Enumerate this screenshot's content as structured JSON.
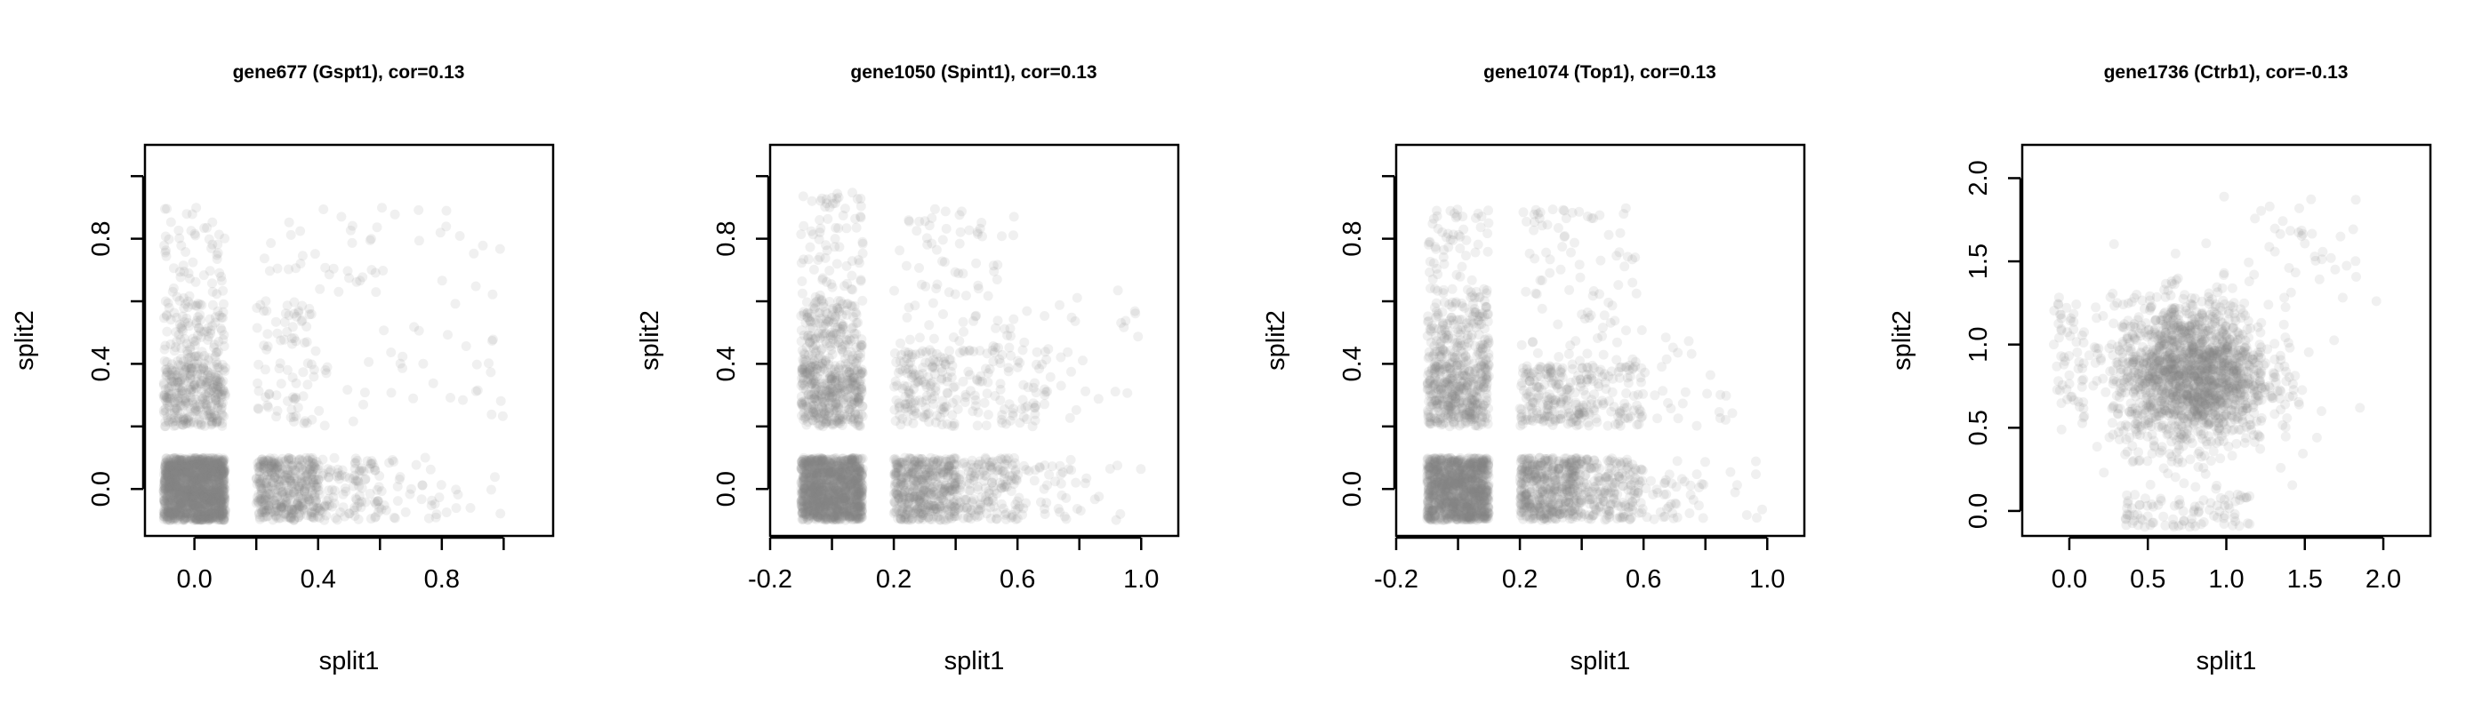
{
  "chart_data": [
    {
      "type": "scatter",
      "title": "gene677 (Gspt1), cor=0.13",
      "xlabel": "split1",
      "ylabel": "split2",
      "xlim": [
        -0.16,
        1.16
      ],
      "ylim": [
        -0.15,
        1.1
      ],
      "xticks": [
        0.0,
        0.2,
        0.4,
        0.6,
        0.8,
        1.0
      ],
      "xtick_labels": [
        "0.0",
        "",
        "0.4",
        "",
        "0.8",
        ""
      ],
      "yticks": [
        0.0,
        0.2,
        0.4,
        0.6,
        0.8,
        1.0
      ],
      "ytick_labels": [
        "0.0",
        "",
        "0.4",
        "",
        "0.8",
        ""
      ],
      "point_color": "#808080",
      "correlation": 0.13,
      "clusters": [
        {
          "x": [
            -0.1,
            0.1
          ],
          "y": [
            -0.1,
            0.1
          ],
          "n": 1500
        },
        {
          "x": [
            0.2,
            0.4
          ],
          "y": [
            -0.1,
            0.1
          ],
          "n": 420
        },
        {
          "x": [
            0.4,
            0.6
          ],
          "y": [
            -0.1,
            0.1
          ],
          "n": 110
        },
        {
          "x": [
            0.6,
            0.8
          ],
          "y": [
            -0.1,
            0.1
          ],
          "n": 30
        },
        {
          "x": [
            0.8,
            1.0
          ],
          "y": [
            -0.1,
            0.1
          ],
          "n": 8
        },
        {
          "x": [
            -0.1,
            0.1
          ],
          "y": [
            0.2,
            0.4
          ],
          "n": 320
        },
        {
          "x": [
            -0.1,
            0.1
          ],
          "y": [
            0.4,
            0.6
          ],
          "n": 110
        },
        {
          "x": [
            -0.1,
            0.1
          ],
          "y": [
            0.6,
            0.9
          ],
          "n": 55
        },
        {
          "x": [
            0.2,
            0.4
          ],
          "y": [
            0.2,
            0.6
          ],
          "n": 80
        },
        {
          "x": [
            0.4,
            1.0
          ],
          "y": [
            0.2,
            0.9
          ],
          "n": 60
        },
        {
          "x": [
            0.2,
            0.6
          ],
          "y": [
            0.6,
            0.9
          ],
          "n": 25
        }
      ]
    },
    {
      "type": "scatter",
      "title": "gene1050 (Spint1), cor=0.13",
      "xlabel": "split1",
      "ylabel": "split2",
      "xlim": [
        -0.2,
        1.12
      ],
      "ylim": [
        -0.15,
        1.1
      ],
      "xticks": [
        -0.2,
        0.0,
        0.2,
        0.4,
        0.6,
        0.8,
        1.0
      ],
      "xtick_labels": [
        "-0.2",
        "",
        "0.2",
        "",
        "0.6",
        "",
        "1.0"
      ],
      "yticks": [
        0.0,
        0.2,
        0.4,
        0.6,
        0.8,
        1.0
      ],
      "ytick_labels": [
        "0.0",
        "",
        "0.4",
        "",
        "0.8",
        ""
      ],
      "point_color": "#808080",
      "correlation": 0.13,
      "clusters": [
        {
          "x": [
            -0.1,
            0.1
          ],
          "y": [
            -0.1,
            0.1
          ],
          "n": 1200
        },
        {
          "x": [
            0.2,
            0.4
          ],
          "y": [
            -0.1,
            0.1
          ],
          "n": 450
        },
        {
          "x": [
            0.4,
            0.6
          ],
          "y": [
            -0.1,
            0.1
          ],
          "n": 160
        },
        {
          "x": [
            0.6,
            0.8
          ],
          "y": [
            -0.1,
            0.1
          ],
          "n": 40
        },
        {
          "x": [
            0.8,
            1.0
          ],
          "y": [
            -0.1,
            0.1
          ],
          "n": 10
        },
        {
          "x": [
            -0.1,
            0.1
          ],
          "y": [
            0.2,
            0.4
          ],
          "n": 380
        },
        {
          "x": [
            -0.1,
            0.1
          ],
          "y": [
            0.4,
            0.6
          ],
          "n": 180
        },
        {
          "x": [
            -0.1,
            0.1
          ],
          "y": [
            0.6,
            0.95
          ],
          "n": 80
        },
        {
          "x": [
            0.2,
            0.4
          ],
          "y": [
            0.2,
            0.45
          ],
          "n": 150
        },
        {
          "x": [
            0.4,
            0.7
          ],
          "y": [
            0.2,
            0.45
          ],
          "n": 90
        },
        {
          "x": [
            0.2,
            0.6
          ],
          "y": [
            0.45,
            0.9
          ],
          "n": 80
        },
        {
          "x": [
            0.6,
            1.0
          ],
          "y": [
            0.2,
            0.7
          ],
          "n": 30
        }
      ]
    },
    {
      "type": "scatter",
      "title": "gene1074 (Top1), cor=0.13",
      "xlabel": "split1",
      "ylabel": "split2",
      "xlim": [
        -0.2,
        1.12
      ],
      "ylim": [
        -0.15,
        1.1
      ],
      "xticks": [
        -0.2,
        0.0,
        0.2,
        0.4,
        0.6,
        0.8,
        1.0
      ],
      "xtick_labels": [
        "-0.2",
        "",
        "0.2",
        "",
        "0.6",
        "",
        "1.0"
      ],
      "yticks": [
        0.0,
        0.2,
        0.4,
        0.6,
        0.8,
        1.0
      ],
      "ytick_labels": [
        "0.0",
        "",
        "0.4",
        "",
        "0.8",
        ""
      ],
      "point_color": "#808080",
      "correlation": 0.13,
      "clusters": [
        {
          "x": [
            -0.1,
            0.1
          ],
          "y": [
            -0.1,
            0.1
          ],
          "n": 1100
        },
        {
          "x": [
            0.2,
            0.4
          ],
          "y": [
            -0.1,
            0.1
          ],
          "n": 480
        },
        {
          "x": [
            0.4,
            0.6
          ],
          "y": [
            -0.1,
            0.1
          ],
          "n": 180
        },
        {
          "x": [
            0.6,
            0.8
          ],
          "y": [
            -0.1,
            0.1
          ],
          "n": 40
        },
        {
          "x": [
            0.8,
            1.0
          ],
          "y": [
            -0.1,
            0.1
          ],
          "n": 8
        },
        {
          "x": [
            -0.1,
            0.1
          ],
          "y": [
            0.2,
            0.4
          ],
          "n": 380
        },
        {
          "x": [
            -0.1,
            0.1
          ],
          "y": [
            0.4,
            0.6
          ],
          "n": 170
        },
        {
          "x": [
            -0.1,
            0.1
          ],
          "y": [
            0.6,
            0.9
          ],
          "n": 70
        },
        {
          "x": [
            0.2,
            0.4
          ],
          "y": [
            0.2,
            0.4
          ],
          "n": 180
        },
        {
          "x": [
            0.4,
            0.6
          ],
          "y": [
            0.2,
            0.4
          ],
          "n": 100
        },
        {
          "x": [
            0.2,
            0.6
          ],
          "y": [
            0.4,
            0.9
          ],
          "n": 90
        },
        {
          "x": [
            0.6,
            0.9
          ],
          "y": [
            0.2,
            0.5
          ],
          "n": 25
        }
      ]
    },
    {
      "type": "scatter",
      "title": "gene1736 (Ctrb1), cor=-0.13",
      "xlabel": "split1",
      "ylabel": "split2",
      "xlim": [
        -0.3,
        2.3
      ],
      "ylim": [
        -0.15,
        2.2
      ],
      "xticks": [
        0.0,
        0.5,
        1.0,
        1.5,
        2.0
      ],
      "xtick_labels": [
        "0.0",
        "0.5",
        "1.0",
        "1.5",
        "2.0"
      ],
      "yticks": [
        0.0,
        0.5,
        1.0,
        1.5,
        2.0
      ],
      "ytick_labels": [
        "0.0",
        "0.5",
        "1.0",
        "1.5",
        "2.0"
      ],
      "point_color": "#808080",
      "correlation": -0.13,
      "clusters": [
        {
          "type": "gauss",
          "cx": 0.78,
          "cy": 0.82,
          "sx": 0.25,
          "sy": 0.22,
          "n": 1800
        },
        {
          "x": [
            -0.1,
            0.1
          ],
          "y": [
            0.6,
            1.25
          ],
          "n": 50
        },
        {
          "x": [
            0.35,
            1.15
          ],
          "y": [
            -0.1,
            0.1
          ],
          "n": 90
        },
        {
          "type": "gauss",
          "cx": 1.45,
          "cy": 1.55,
          "sx": 0.22,
          "sy": 0.25,
          "n": 40
        }
      ]
    }
  ]
}
